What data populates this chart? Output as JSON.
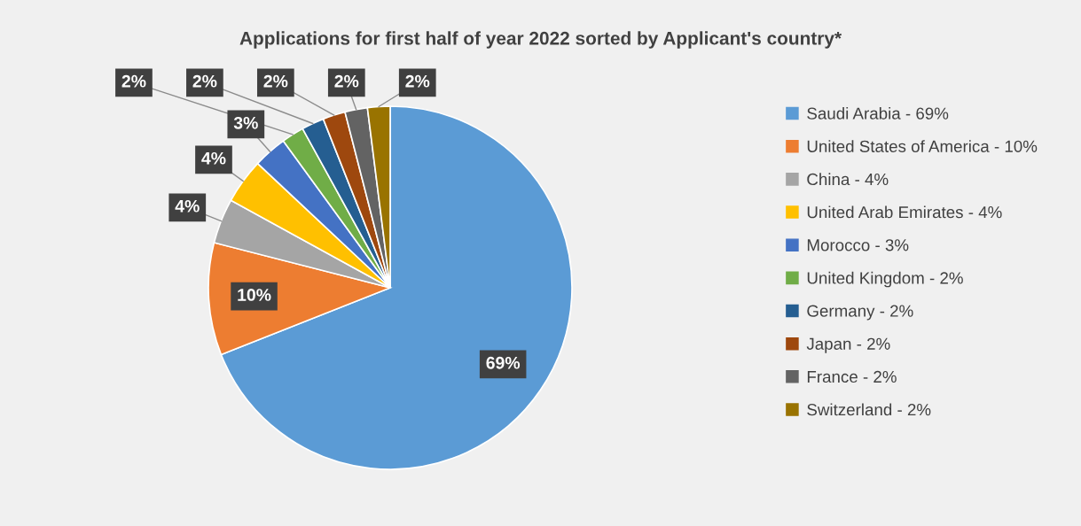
{
  "chart_data": {
    "type": "pie",
    "title": "Applications for first half of year 2022 sorted by Applicant's country*",
    "categories": [
      "Saudi Arabia - 69%",
      "United States of America - 10%",
      "China - 4%",
      "United Arab Emirates - 4%",
      "Morocco - 3%",
      "United Kingdom - 2%",
      "Germany - 2%",
      "Japan - 2%",
      "France - 2%",
      "Switzerland - 2%"
    ],
    "values": [
      69,
      10,
      4,
      4,
      3,
      2,
      2,
      2,
      2,
      2
    ],
    "colors": [
      "#5b9bd5",
      "#ed7d31",
      "#a5a5a5",
      "#ffc000",
      "#4472c4",
      "#70ad47",
      "#255e91",
      "#9e480e",
      "#636363",
      "#997300"
    ],
    "value_labels": [
      "69%",
      "10%",
      "4%",
      "4%",
      "3%",
      "2%",
      "2%",
      "2%",
      "2%",
      "2%"
    ],
    "legend": "right"
  }
}
